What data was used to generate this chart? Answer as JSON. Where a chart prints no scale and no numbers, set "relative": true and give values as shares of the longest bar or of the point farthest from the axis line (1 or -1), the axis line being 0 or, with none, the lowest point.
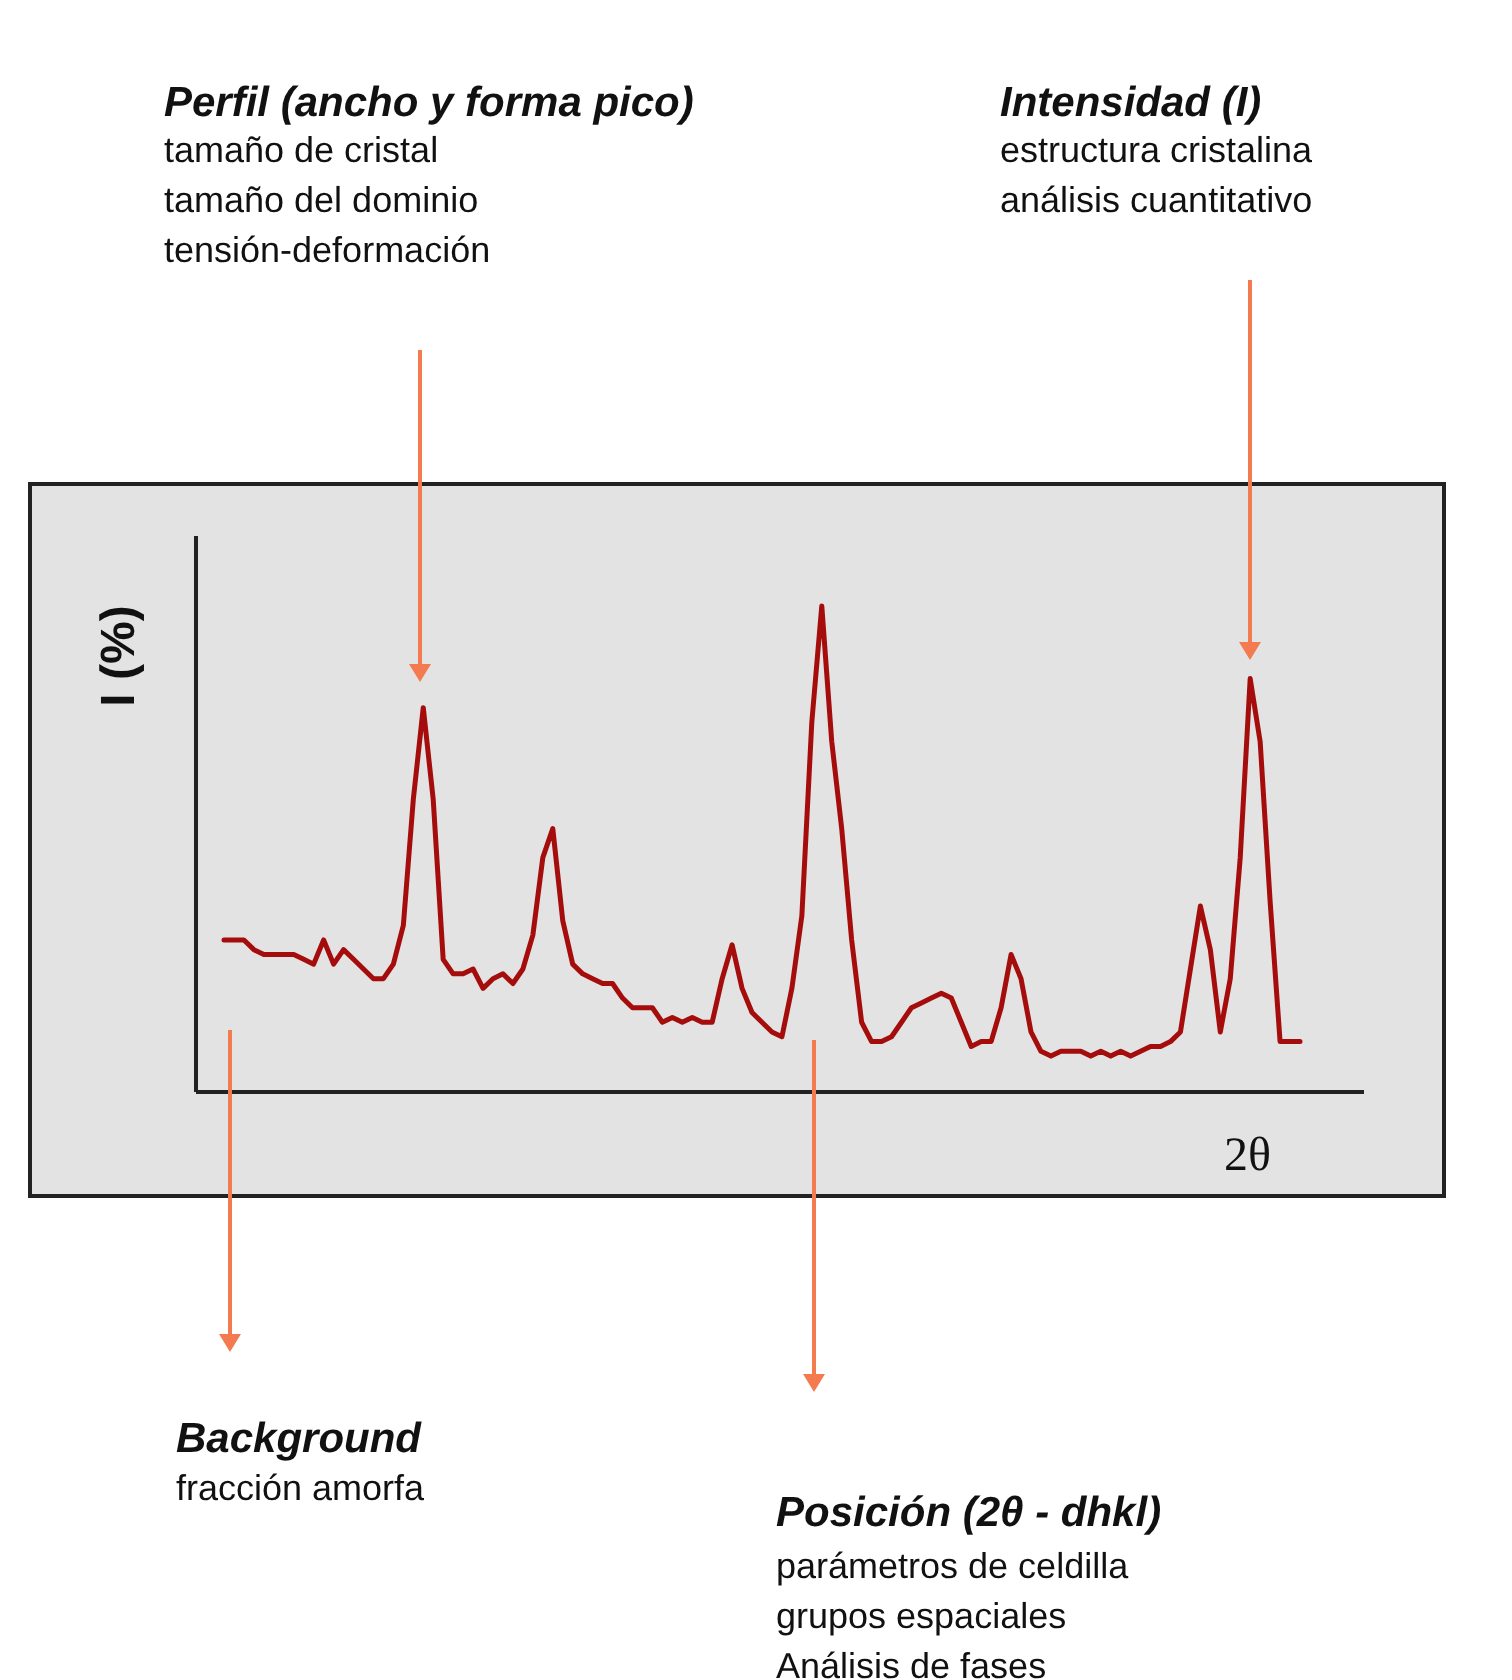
{
  "chart_data": {
    "type": "line",
    "relative": true,
    "xlabel": "2θ",
    "ylabel": "I (%)",
    "categories": [
      null,
      null,
      null,
      null,
      null,
      null,
      null,
      null,
      null,
      null,
      null,
      null,
      null,
      null,
      null,
      null,
      null,
      null,
      null,
      null,
      null,
      null,
      null,
      null,
      null,
      null,
      null,
      null,
      null,
      null,
      null,
      null,
      null,
      null,
      null,
      null,
      null,
      null,
      null,
      null,
      null,
      null,
      null,
      null,
      null,
      null,
      null,
      null,
      null,
      null,
      null,
      null,
      null,
      null,
      null,
      null,
      null,
      null,
      null,
      null,
      null,
      null,
      null,
      null,
      null,
      null,
      null,
      null,
      null,
      null,
      null,
      null,
      null,
      null,
      null,
      null,
      null,
      null,
      null,
      null,
      null,
      null,
      null,
      null,
      null,
      null,
      null,
      null,
      null,
      null,
      null,
      null,
      null,
      null,
      null,
      null,
      null,
      null,
      null,
      null,
      null,
      null,
      null,
      null,
      null,
      null,
      null,
      null,
      null
    ],
    "series": [
      {
        "color": "#a50d0d",
        "values": [
          0.31,
          0.31,
          0.31,
          0.29,
          0.28,
          0.28,
          0.28,
          0.28,
          0.27,
          0.26,
          0.31,
          0.26,
          0.29,
          0.27,
          0.25,
          0.23,
          0.23,
          0.26,
          0.34,
          0.6,
          0.79,
          0.6,
          0.27,
          0.24,
          0.24,
          0.25,
          0.21,
          0.23,
          0.24,
          0.22,
          0.25,
          0.32,
          0.48,
          0.54,
          0.35,
          0.26,
          0.24,
          0.23,
          0.22,
          0.22,
          0.19,
          0.17,
          0.17,
          0.17,
          0.14,
          0.15,
          0.14,
          0.15,
          0.14,
          0.14,
          0.23,
          0.3,
          0.21,
          0.16,
          0.14,
          0.12,
          0.11,
          0.21,
          0.36,
          0.76,
          1.0,
          0.72,
          0.54,
          0.31,
          0.14,
          0.1,
          0.1,
          0.11,
          0.14,
          0.17,
          0.18,
          0.19,
          0.2,
          0.19,
          0.14,
          0.09,
          0.1,
          0.1,
          0.17,
          0.28,
          0.23,
          0.12,
          0.08,
          0.07,
          0.08,
          0.08,
          0.08,
          0.07,
          0.08,
          0.07,
          0.08,
          0.07,
          0.08,
          0.09,
          0.09,
          0.1,
          0.12,
          0.25,
          0.38,
          0.29,
          0.12,
          0.23,
          0.48,
          0.85,
          0.72,
          0.39,
          0.1,
          0.1,
          0.1
        ]
      }
    ],
    "annotations": [
      "Perfil (ancho y forma pico)",
      "tamaño de cristal",
      "tamaño del dominio",
      "tensión-deformación",
      "Intensidad (I)",
      "estructura cristalina",
      "análisis cuantitativo",
      "Background",
      "fracción amorfa",
      "Posición (2θ - dhkl)",
      "parámetros de celdilla",
      "grupos espaciales",
      "Análisis de fases"
    ]
  }
}
